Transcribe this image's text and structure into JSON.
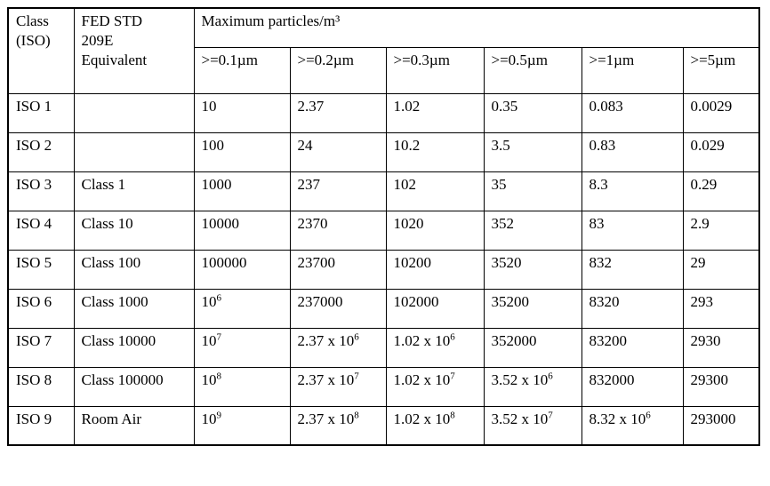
{
  "page": {
    "background_color": "#ffffff",
    "text_color": "#000000",
    "border_color": "#000000"
  },
  "table": {
    "header": {
      "class_iso": "Class\n(ISO)",
      "fed_std": "FED STD\n209E\nEquivalent",
      "max_particles": "Maximum particles/m³"
    },
    "columns": [
      ">=0.1µm",
      ">=0.2µm",
      ">=0.3µm",
      ">=0.5µm",
      ">=1µm",
      ">=5µm"
    ],
    "rows": [
      {
        "class_iso": "ISO 1",
        "fed_std": "",
        "values": [
          "10",
          "2.37",
          "1.02",
          "0.35",
          "0.083",
          "0.0029"
        ]
      },
      {
        "class_iso": "ISO 2",
        "fed_std": "",
        "values": [
          "100",
          "24",
          "10.2",
          "3.5",
          "0.83",
          "0.029"
        ]
      },
      {
        "class_iso": "ISO 3",
        "fed_std": "Class 1",
        "values": [
          "1000",
          "237",
          "102",
          "35",
          "8.3",
          "0.29"
        ]
      },
      {
        "class_iso": "ISO 4",
        "fed_std": "Class 10",
        "values": [
          "10000",
          "2370",
          "1020",
          "352",
          "83",
          "2.9"
        ]
      },
      {
        "class_iso": "ISO 5",
        "fed_std": "Class 100",
        "values": [
          "100000",
          "23700",
          "10200",
          "3520",
          "832",
          "29"
        ]
      },
      {
        "class_iso": "ISO 6",
        "fed_std": "Class 1000",
        "values": [
          "10^6",
          "237000",
          "102000",
          "35200",
          "8320",
          "293"
        ]
      },
      {
        "class_iso": "ISO 7",
        "fed_std": "Class 10000",
        "values": [
          "10^7",
          "2.37 x 10^6",
          "1.02 x 10^6",
          "352000",
          "83200",
          "2930"
        ]
      },
      {
        "class_iso": "ISO 8",
        "fed_std": "Class 100000",
        "values": [
          "10^8",
          "2.37 x 10^7",
          "1.02 x 10^7",
          "3.52 x 10^6",
          "832000",
          "29300"
        ]
      },
      {
        "class_iso": "ISO 9",
        "fed_std": "Room Air",
        "values": [
          "10^9",
          "2.37 x 10^8",
          "1.02 x 10^8",
          "3.52 x 10^7",
          "8.32 x 10^6",
          "293000"
        ]
      }
    ]
  },
  "chart_data": {
    "type": "table",
    "title": "Maximum particles/m³",
    "categories": [
      "ISO 1",
      "ISO 2",
      "ISO 3",
      "ISO 4",
      "ISO 5",
      "ISO 6",
      "ISO 7",
      "ISO 8",
      "ISO 9"
    ],
    "series": [
      {
        "name": ">=0.1µm",
        "values": [
          10,
          100,
          1000,
          10000,
          100000,
          1000000,
          10000000,
          100000000,
          1000000000
        ]
      },
      {
        "name": ">=0.2µm",
        "values": [
          2.37,
          24,
          237,
          2370,
          23700,
          237000,
          2370000,
          23700000,
          237000000
        ]
      },
      {
        "name": ">=0.3µm",
        "values": [
          1.02,
          10.2,
          102,
          1020,
          10200,
          102000,
          1020000,
          10200000,
          102000000
        ]
      },
      {
        "name": ">=0.5µm",
        "values": [
          0.35,
          3.5,
          35,
          352,
          3520,
          35200,
          352000,
          3520000,
          35200000
        ]
      },
      {
        "name": ">=1µm",
        "values": [
          0.083,
          0.83,
          8.3,
          83,
          832,
          8320,
          83200,
          832000,
          8320000
        ]
      },
      {
        "name": ">=5µm",
        "values": [
          0.0029,
          0.029,
          0.29,
          2.9,
          29,
          293,
          2930,
          29300,
          293000
        ]
      }
    ],
    "fed_std_equivalents": [
      "",
      "",
      "Class 1",
      "Class 10",
      "Class 100",
      "Class 1000",
      "Class 10000",
      "Class 100000",
      "Room Air"
    ]
  }
}
